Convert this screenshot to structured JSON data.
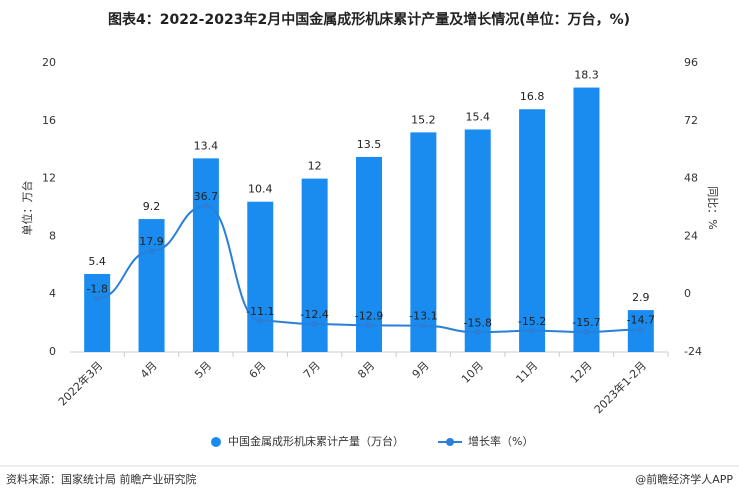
{
  "chart_data": {
    "type": "bar-line",
    "title": "图表4：2022-2023年2月中国金属成形机床累计产量及增长情况(单位：万台，%)",
    "ylabel": "单位：万台",
    "y2label": "同比：%",
    "categories": [
      "2022年3月",
      "4月",
      "5月",
      "6月",
      "7月",
      "8月",
      "9月",
      "10月",
      "11月",
      "12月",
      "2023年1-2月"
    ],
    "series": [
      {
        "name": "中国金属成形机床累计产量（万台）",
        "type": "bar",
        "color": "#1a8cf0",
        "values": [
          5.4,
          9.2,
          13.4,
          10.4,
          12,
          13.5,
          15.2,
          15.4,
          16.8,
          18.3,
          2.9
        ]
      },
      {
        "name": "增长率（%）",
        "type": "line",
        "axis": "y2",
        "color": "#2a7fd8",
        "values": [
          -1.8,
          17.9,
          36.7,
          -11.1,
          -12.4,
          -12.9,
          -13.1,
          -15.8,
          -15.2,
          -15.7,
          -14.7
        ]
      }
    ],
    "ylim": [
      0,
      20
    ],
    "yticks": [
      0,
      4,
      8,
      12,
      16,
      20
    ],
    "y2lim": [
      -24,
      96
    ],
    "y2ticks": [
      -24,
      0,
      24,
      48,
      72,
      96
    ],
    "source": "资料来源：国家统计局 前瞻产业研究院",
    "credit": "@前瞻经济学人APP"
  }
}
